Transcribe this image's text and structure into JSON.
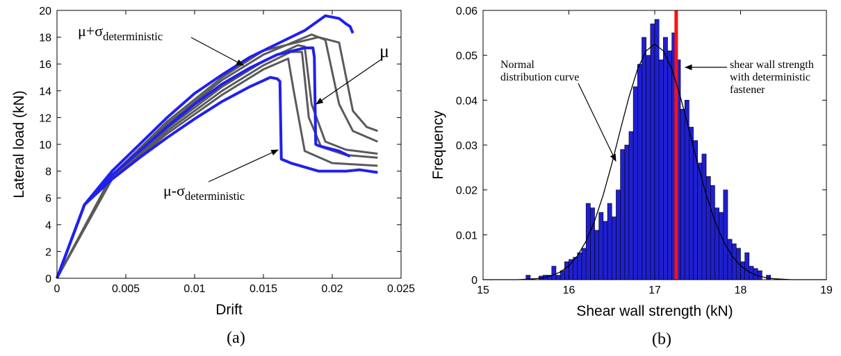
{
  "chart_data": [
    {
      "type": "line",
      "xlabel": "Drift",
      "ylabel": "Lateral load (kN)",
      "caption": "(a)",
      "xlim": [
        0,
        0.025
      ],
      "xticks": [
        0,
        0.005,
        0.01,
        0.015,
        0.02,
        0.025
      ],
      "ylim": [
        0,
        20
      ],
      "yticks": [
        0,
        2,
        4,
        6,
        8,
        10,
        12,
        14,
        16,
        18,
        20
      ],
      "annotations": [
        {
          "text": "μ+σ",
          "sub": "deterministic"
        },
        {
          "text": "μ"
        },
        {
          "text": "μ-σ",
          "sub": "deterministic"
        }
      ],
      "series": [
        {
          "color": "#5a5a5a",
          "x": [
            0,
            0.004,
            0.008,
            0.012,
            0.015,
            0.0175,
            0.018,
            0.0185,
            0.0195,
            0.021,
            0.0233
          ],
          "values": [
            0,
            7.6,
            11.2,
            14.3,
            16.2,
            17.4,
            17.3,
            13,
            10.2,
            9.6,
            9.3
          ]
        },
        {
          "color": "#5a5a5a",
          "x": [
            0,
            0.004,
            0.008,
            0.012,
            0.015,
            0.017,
            0.0178,
            0.0183,
            0.0192,
            0.021,
            0.0233
          ],
          "values": [
            0,
            7.5,
            11,
            14,
            15.9,
            16.9,
            16.9,
            12,
            9.8,
            9.2,
            9
          ]
        },
        {
          "color": "#5a5a5a",
          "x": [
            0,
            0.004,
            0.008,
            0.012,
            0.015,
            0.0185,
            0.0195,
            0.0205,
            0.0215,
            0.0233
          ],
          "values": [
            0,
            7.7,
            11.5,
            14.8,
            16.7,
            18.2,
            17.8,
            13,
            11,
            10.2
          ]
        },
        {
          "color": "#5a5a5a",
          "x": [
            0,
            0.004,
            0.008,
            0.012,
            0.015,
            0.0168,
            0.0172,
            0.018,
            0.02,
            0.0233
          ],
          "values": [
            0,
            7.4,
            10.8,
            13.7,
            15.6,
            16.4,
            14,
            9.5,
            8.6,
            8.4
          ]
        },
        {
          "color": "#5a5a5a",
          "x": [
            0,
            0.004,
            0.008,
            0.012,
            0.015,
            0.019,
            0.0205,
            0.0215,
            0.0225,
            0.0233
          ],
          "values": [
            0,
            7.7,
            11.7,
            15,
            17,
            18,
            17.6,
            12.5,
            11.3,
            11
          ]
        },
        {
          "color": "#2020ee",
          "x": [
            0,
            0.002,
            0.004,
            0.006,
            0.008,
            0.01,
            0.012,
            0.014,
            0.016,
            0.018,
            0.0195,
            0.0205,
            0.021,
            0.0213,
            0.0215
          ],
          "values": [
            0,
            5.5,
            8,
            10,
            12,
            13.8,
            15.2,
            16.5,
            17.5,
            18.5,
            19.6,
            19.4,
            19,
            18.8,
            18.3
          ]
        },
        {
          "color": "#2020ee",
          "x": [
            0,
            0.002,
            0.004,
            0.006,
            0.008,
            0.01,
            0.012,
            0.014,
            0.016,
            0.018,
            0.0186,
            0.0187,
            0.0188,
            0.019,
            0.0205,
            0.0213
          ],
          "values": [
            0,
            5.5,
            7.7,
            9.5,
            11.3,
            13,
            14.5,
            15.7,
            16.7,
            17.2,
            17.2,
            16.5,
            10,
            9.9,
            9.5,
            9.1
          ]
        },
        {
          "color": "#2020ee",
          "x": [
            0,
            0.002,
            0.004,
            0.006,
            0.008,
            0.01,
            0.012,
            0.014,
            0.0155,
            0.016,
            0.0162,
            0.0163,
            0.017,
            0.019,
            0.021,
            0.022,
            0.0233
          ],
          "values": [
            0,
            5.5,
            7.4,
            9,
            10.5,
            11.9,
            13.2,
            14.3,
            15,
            14.9,
            14.7,
            8.9,
            8.6,
            8,
            8,
            8.1,
            7.9
          ]
        }
      ]
    },
    {
      "type": "histogram",
      "xlabel": "Shear wall strength (kN)",
      "ylabel": "Frequency",
      "caption": "(b)",
      "xlim": [
        15,
        19
      ],
      "xticks": [
        15,
        16,
        17,
        18,
        19
      ],
      "ylim": [
        0,
        0.06
      ],
      "yticks": [
        0,
        0.01,
        0.02,
        0.03,
        0.04,
        0.05,
        0.06
      ],
      "color": "#1f1fd0",
      "bins": [
        15.5,
        15.55,
        15.6,
        15.65,
        15.7,
        15.75,
        15.8,
        15.85,
        15.9,
        15.95,
        16,
        16.05,
        16.1,
        16.15,
        16.2,
        16.25,
        16.3,
        16.35,
        16.4,
        16.45,
        16.5,
        16.55,
        16.6,
        16.65,
        16.7,
        16.75,
        16.8,
        16.85,
        16.9,
        16.95,
        17,
        17.05,
        17.1,
        17.15,
        17.2,
        17.25,
        17.3,
        17.35,
        17.4,
        17.45,
        17.5,
        17.55,
        17.6,
        17.65,
        17.7,
        17.75,
        17.8,
        17.85,
        17.9,
        17.95,
        18,
        18.05,
        18.1,
        18.15,
        18.2,
        18.25,
        18.3,
        18.35
      ],
      "values": [
        0.001,
        0,
        0,
        0.0008,
        0.001,
        0.001,
        0.003,
        0.001,
        0.002,
        0.004,
        0.0045,
        0.005,
        0.006,
        0.007,
        0.017,
        0.016,
        0.011,
        0.015,
        0.013,
        0.017,
        0.014,
        0.02,
        0.029,
        0.03,
        0.033,
        0.043,
        0.048,
        0.054,
        0.05,
        0.057,
        0.058,
        0.049,
        0.054,
        0.051,
        0.055,
        0.049,
        0.038,
        0.04,
        0.034,
        0.031,
        0.026,
        0.028,
        0.023,
        0.021,
        0.016,
        0.015,
        0.02,
        0.009,
        0.008,
        0.007,
        0.004,
        0.006,
        0.003,
        0.0025,
        0.002,
        0,
        0.001
      ],
      "curve": {
        "color": "#000000",
        "x": [
          15,
          15.1,
          15.2,
          15.3,
          15.4,
          15.5,
          15.6,
          15.7,
          15.8,
          15.9,
          16,
          16.1,
          16.2,
          16.3,
          16.4,
          16.5,
          16.6,
          16.7,
          16.8,
          16.9,
          17,
          17.1,
          17.2,
          17.3,
          17.4,
          17.5,
          17.6,
          17.7,
          17.8,
          17.9,
          18,
          18.1,
          18.2,
          18.3,
          18.4,
          18.5,
          18.6,
          18.7,
          18.8,
          18.9,
          19
        ],
        "values": [
          0,
          0,
          0,
          0,
          0,
          0.0001,
          0.0002,
          0.0004,
          0.0009,
          0.0017,
          0.0031,
          0.0053,
          0.0086,
          0.0131,
          0.0189,
          0.0258,
          0.0334,
          0.0407,
          0.0469,
          0.051,
          0.0525,
          0.051,
          0.0469,
          0.0407,
          0.0334,
          0.0258,
          0.0189,
          0.0131,
          0.0086,
          0.0053,
          0.0031,
          0.0017,
          0.0009,
          0.0004,
          0.0002,
          0.0001,
          0,
          0,
          0,
          0,
          0
        ]
      },
      "reference_line": {
        "x": 17.25,
        "color": "#ff1010"
      },
      "annotations": [
        {
          "lines": [
            "Normal",
            "distribution curve"
          ]
        },
        {
          "lines": [
            "shear wall strength",
            "with deterministic",
            "fastener"
          ]
        }
      ]
    }
  ]
}
